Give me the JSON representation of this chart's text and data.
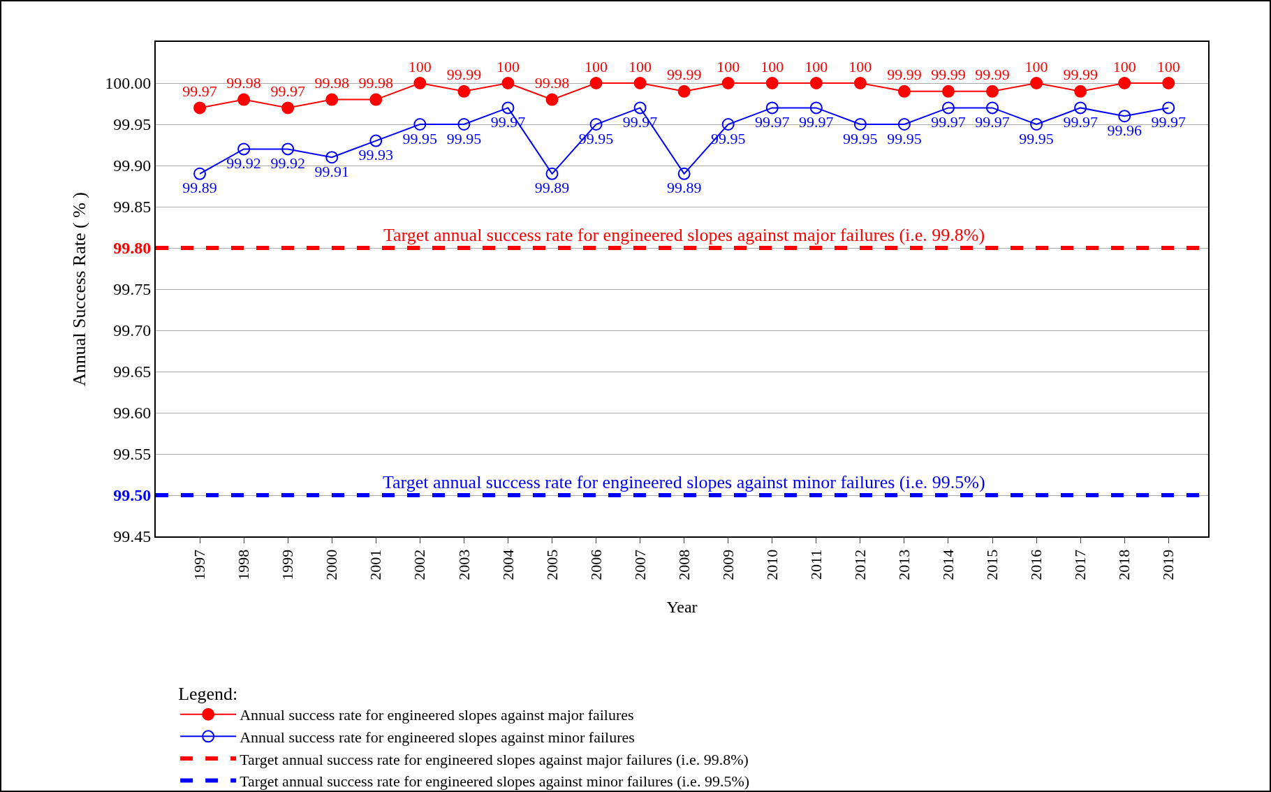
{
  "chart_data": {
    "type": "line",
    "xlabel": "Year",
    "ylabel": "Annual Success Rate ( % )",
    "legend_title": "Legend:",
    "categories": [
      "1997",
      "1998",
      "1999",
      "2000",
      "2001",
      "2002",
      "2003",
      "2004",
      "2005",
      "2006",
      "2007",
      "2008",
      "2009",
      "2010",
      "2011",
      "2012",
      "2013",
      "2014",
      "2015",
      "2016",
      "2017",
      "2018",
      "2019"
    ],
    "series": [
      {
        "name": "Annual success rate for engineered slopes against major failures",
        "color": "#ff0000",
        "values": [
          99.97,
          99.98,
          99.97,
          99.98,
          99.98,
          100,
          99.99,
          100,
          99.98,
          100,
          100,
          99.99,
          100,
          100,
          100,
          100,
          99.99,
          99.99,
          99.99,
          100,
          99.99,
          100,
          100
        ]
      },
      {
        "name": "Annual success rate for engineered slopes against minor failures",
        "color": "#0000ff",
        "values": [
          99.89,
          99.92,
          99.92,
          99.91,
          99.93,
          99.95,
          99.95,
          99.97,
          99.89,
          99.95,
          99.97,
          99.89,
          99.95,
          99.97,
          99.97,
          99.95,
          99.95,
          99.97,
          99.97,
          99.95,
          99.97,
          99.96,
          99.97
        ]
      }
    ],
    "ylim": [
      99.45,
      100.05
    ],
    "yticks": [
      99.45,
      {
        "value": 99.5,
        "label": "99.50"
      },
      99.55,
      {
        "value": 99.6,
        "label": "99.60"
      },
      99.65,
      {
        "value": 99.7,
        "label": "99.70"
      },
      99.75,
      {
        "value": 99.8,
        "label": "99.80"
      },
      99.85,
      {
        "value": 99.9,
        "label": "99.90"
      },
      99.95,
      {
        "value": 100,
        "label": "100.00"
      }
    ],
    "ref_lines": [
      {
        "axis": "y",
        "value": 99.8,
        "label": "Target annual success rate for engineered slopes against major failures (i.e. 99.8%)",
        "color": "#ff0000",
        "line_style": "dashed"
      },
      {
        "axis": "y",
        "value": 99.5,
        "label": "Target annual success rate for engineered slopes against minor failures (i.e. 99.5%)",
        "color": "#0000ff",
        "line_style": "dashed"
      }
    ],
    "data_labels": true,
    "grid": "y",
    "legend": "bottom",
    "marker": "circle",
    "line_style": "solid"
  }
}
